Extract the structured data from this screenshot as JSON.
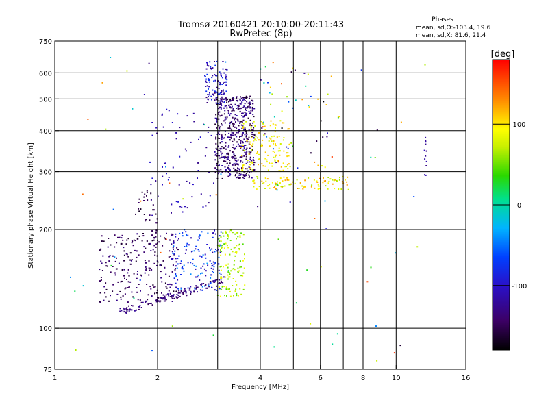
{
  "chart_data": {
    "type": "scatter",
    "title": "Tromsø 20160421 20:10:00-20:11:43",
    "subtitle": "RwPretec (8p)",
    "stats": {
      "heading": "Phases",
      "line1": "mean, sd,O:-103.4, 19.6",
      "line2": "mean, sd,X:  81.6, 21.4"
    },
    "xlabel": "Frequency [MHz]",
    "ylabel": "Stationary phase Virtual Height [km]",
    "xscale": "log",
    "yscale": "log",
    "xlim": [
      1,
      16
    ],
    "ylim": [
      75,
      750
    ],
    "grid": true,
    "x_ticks": [
      1,
      2,
      4,
      6,
      8,
      10,
      16
    ],
    "x_tick_labels": [
      "1",
      "2",
      "4",
      "6",
      "8",
      "10",
      "16"
    ],
    "x_gridlines": [
      2,
      3,
      4,
      5,
      6,
      7,
      8,
      10
    ],
    "y_ticks": [
      75,
      100,
      200,
      300,
      400,
      500,
      600,
      750
    ],
    "y_tick_labels": [
      "75",
      "100",
      "200",
      "300",
      "400",
      "500",
      "600",
      "750"
    ],
    "y_gridlines": [
      100,
      200,
      300,
      400,
      500,
      600
    ],
    "colorbar": {
      "label": "[deg]",
      "range": [
        -180,
        180
      ],
      "ticks": [
        100,
        0,
        -100
      ],
      "tick_labels": [
        "100",
        "0",
        "-100"
      ],
      "colormap": "rainbow"
    },
    "clusters": [
      {
        "name": "O-low-trace",
        "fmin": 1.55,
        "fmax": 3.15,
        "hmin": 112,
        "hmax": 140,
        "n": 140,
        "pmin": -150,
        "pmax": -120,
        "type": "trace",
        "spread": 0.025
      },
      {
        "name": "O-low-cloud",
        "fmin": 1.35,
        "fmax": 2.3,
        "hmin": 120,
        "hmax": 195,
        "n": 230,
        "pmin": -165,
        "pmax": -125
      },
      {
        "name": "O-low-mid",
        "fmin": 2.2,
        "fmax": 3.1,
        "hmin": 130,
        "hmax": 200,
        "n": 150,
        "pmin": -120,
        "pmax": -40
      },
      {
        "name": "X-low",
        "fmin": 3.0,
        "fmax": 3.6,
        "hmin": 125,
        "hmax": 200,
        "n": 130,
        "pmin": 40,
        "pmax": 100
      },
      {
        "name": "O-F-main",
        "fmin": 2.95,
        "fmax": 3.85,
        "hmin": 285,
        "hmax": 510,
        "n": 520,
        "pmin": -165,
        "pmax": -110
      },
      {
        "name": "O-F-top",
        "fmin": 2.75,
        "fmax": 3.2,
        "hmin": 480,
        "hmax": 650,
        "n": 110,
        "pmin": -140,
        "pmax": -70
      },
      {
        "name": "X-F-main",
        "fmin": 3.5,
        "fmax": 4.9,
        "hmin": 300,
        "hmax": 430,
        "n": 130,
        "pmin": 70,
        "pmax": 120
      },
      {
        "name": "X-F-tail",
        "fmin": 3.8,
        "fmax": 7.2,
        "hmin": 265,
        "hmax": 290,
        "n": 100,
        "pmin": 60,
        "pmax": 130
      },
      {
        "name": "O-F-spread",
        "fmin": 1.9,
        "fmax": 3.0,
        "hmin": 220,
        "hmax": 470,
        "n": 70,
        "pmin": -130,
        "pmax": -90
      },
      {
        "name": "O-mid",
        "fmin": 1.7,
        "fmax": 2.0,
        "hmin": 180,
        "hmax": 270,
        "n": 40,
        "pmin": -170,
        "pmax": -140
      },
      {
        "name": "scatter-high",
        "fmin": 4.0,
        "fmax": 6.5,
        "hmin": 300,
        "hmax": 640,
        "n": 60,
        "pmin": -180,
        "pmax": 160
      },
      {
        "name": "scatter-wide",
        "fmin": 1.1,
        "fmax": 13,
        "hmin": 78,
        "hmax": 700,
        "n": 70,
        "pmin": -170,
        "pmax": 160
      },
      {
        "name": "X-12MHz",
        "fmin": 12.1,
        "fmax": 12.3,
        "hmin": 290,
        "hmax": 410,
        "n": 12,
        "pmin": -130,
        "pmax": -110
      }
    ]
  }
}
